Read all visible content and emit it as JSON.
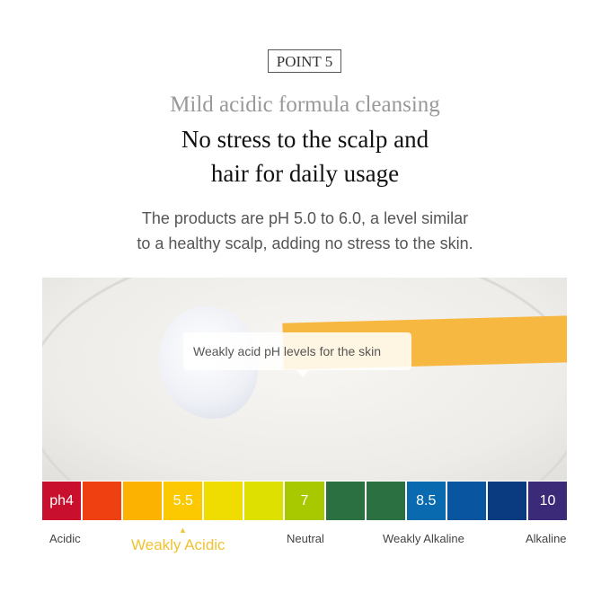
{
  "badge": "POINT 5",
  "subtitle": "Mild acidic formula  cleansing",
  "title_lines": [
    "No stress to the scalp and",
    "hair for daily usage"
  ],
  "description_lines": [
    "The products are pH 5.0 to 6.0, a level similar",
    "to a healthy scalp, adding no stress to the skin."
  ],
  "photo": {
    "callout": "Weakly acid pH levels for the skin"
  },
  "ph_scale": {
    "cells": [
      {
        "label": "ph4",
        "color": "#c8102e"
      },
      {
        "label": "",
        "color": "#ee4010"
      },
      {
        "label": "",
        "color": "#fbb200"
      },
      {
        "label": "5.5",
        "color": "#fcc800"
      },
      {
        "label": "",
        "color": "#efdc00"
      },
      {
        "label": "",
        "color": "#dde000"
      },
      {
        "label": "7",
        "color": "#a8c800"
      },
      {
        "label": "",
        "color": "#2a7040"
      },
      {
        "label": "",
        "color": "#2a7040"
      },
      {
        "label": "8.5",
        "color": "#0a6ab0"
      },
      {
        "label": "",
        "color": "#0a55a0"
      },
      {
        "label": "",
        "color": "#0a3a80"
      },
      {
        "label": "10",
        "color": "#3a2a78"
      }
    ],
    "labels": {
      "acidic": "Acidic",
      "weakly_acidic": "Weakly Acidic",
      "neutral": "Neutral",
      "weakly_alkaline": "Weakly Alkaline",
      "alkaline": "Alkaline"
    },
    "marker": "▲",
    "highlight_color": "#f1c232"
  }
}
